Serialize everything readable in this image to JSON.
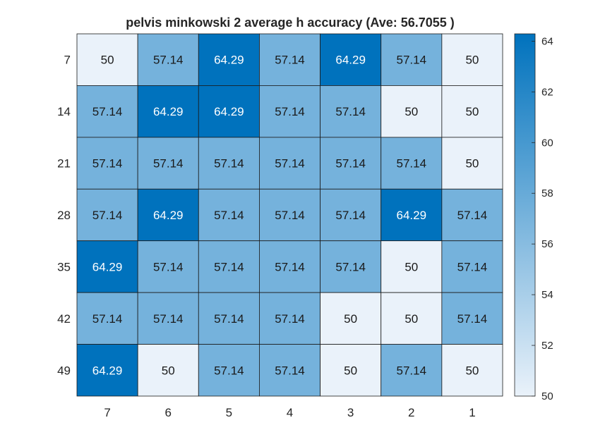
{
  "chart_data": {
    "type": "heatmap",
    "title": "pelvis minkowski 2 average h accuracy (Ave:  56.7055 )",
    "xlabel": "",
    "ylabel": "",
    "x_categories": [
      "7",
      "6",
      "5",
      "4",
      "3",
      "2",
      "1"
    ],
    "y_categories": [
      "7",
      "14",
      "21",
      "28",
      "35",
      "42",
      "49"
    ],
    "values": [
      [
        50,
        57.14,
        64.29,
        57.14,
        64.29,
        57.14,
        50
      ],
      [
        57.14,
        64.29,
        64.29,
        57.14,
        57.14,
        50,
        50
      ],
      [
        57.14,
        57.14,
        57.14,
        57.14,
        57.14,
        57.14,
        50
      ],
      [
        57.14,
        64.29,
        57.14,
        57.14,
        57.14,
        64.29,
        57.14
      ],
      [
        64.29,
        57.14,
        57.14,
        57.14,
        57.14,
        50,
        57.14
      ],
      [
        57.14,
        57.14,
        57.14,
        57.14,
        50,
        50,
        57.14
      ],
      [
        64.29,
        50,
        57.14,
        57.14,
        50,
        57.14,
        50
      ]
    ],
    "colorbar": {
      "range": [
        50,
        64.29
      ],
      "ticks": [
        "50",
        "52",
        "54",
        "56",
        "58",
        "60",
        "62",
        "64"
      ],
      "low_color": "#eaf2fa",
      "high_color": "#0072bd"
    }
  }
}
